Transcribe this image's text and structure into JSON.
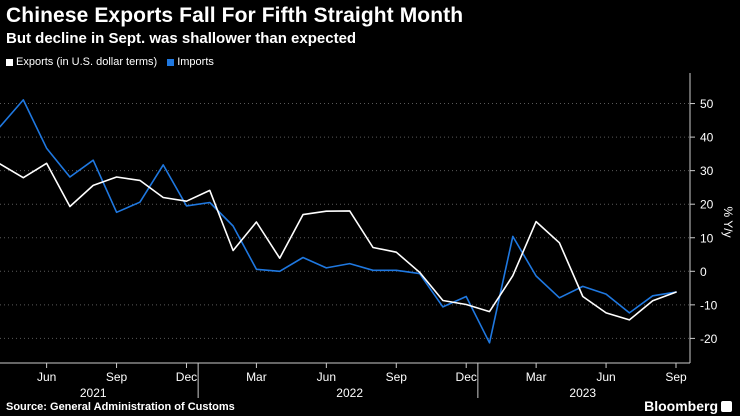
{
  "header": {
    "title": "Chinese Exports Fall For Fifth Straight Month",
    "subtitle": "But decline in Sept. was shallower than expected"
  },
  "footer": {
    "source": "Source: General Administration of Customs",
    "brand": "Bloomberg"
  },
  "colors": {
    "background": "#000000",
    "exports": "#ffffff",
    "imports": "#1f78e0",
    "grid": "#5a5a5a",
    "text": "#ffffff"
  },
  "chart_data": {
    "type": "line",
    "title": "Chinese Exports Fall For Fifth Straight Month",
    "subtitle": "But decline in Sept. was shallower than expected",
    "ylabel": "% Y/y",
    "xlabel": "",
    "ylim": [
      -25,
      60
    ],
    "yticks": [
      50,
      40,
      30,
      20,
      10,
      0,
      -10,
      -20
    ],
    "grid": true,
    "legend_position": "top-left",
    "x": [
      "2021-04",
      "2021-05",
      "2021-06",
      "2021-07",
      "2021-08",
      "2021-09",
      "2021-10",
      "2021-11",
      "2021-12",
      "2022-01",
      "2022-02",
      "2022-03",
      "2022-04",
      "2022-05",
      "2022-06",
      "2022-07",
      "2022-08",
      "2022-09",
      "2022-10",
      "2022-11",
      "2022-12",
      "2023-01",
      "2023-02",
      "2023-03",
      "2023-04",
      "2023-05",
      "2023-06",
      "2023-07",
      "2023-08",
      "2023-09"
    ],
    "x_tick_labels": [
      {
        "label": "Jun",
        "x": "2021-06"
      },
      {
        "label": "Sep",
        "x": "2021-09"
      },
      {
        "label": "Dec",
        "x": "2021-12"
      },
      {
        "label": "Mar",
        "x": "2022-03"
      },
      {
        "label": "Jun",
        "x": "2022-06"
      },
      {
        "label": "Sep",
        "x": "2022-09"
      },
      {
        "label": "Dec",
        "x": "2022-12"
      },
      {
        "label": "Mar",
        "x": "2023-03"
      },
      {
        "label": "Jun",
        "x": "2023-06"
      },
      {
        "label": "Sep",
        "x": "2023-09"
      }
    ],
    "year_labels": [
      {
        "label": "2021",
        "x": "2021-08"
      },
      {
        "label": "2022",
        "x": "2022-07"
      },
      {
        "label": "2023",
        "x": "2023-05"
      }
    ],
    "year_dividers": [
      "2022-01",
      "2023-01"
    ],
    "series": [
      {
        "name": "Exports (in U.S. dollar terms)",
        "color": "#ffffff",
        "values": [
          32,
          27.9,
          32.2,
          19.3,
          25.6,
          28.1,
          27.1,
          22,
          20.9,
          24.1,
          6.2,
          14.7,
          3.9,
          16.9,
          17.9,
          18,
          7.1,
          5.7,
          -0.3,
          -8.7,
          -9.9,
          -12,
          -1.3,
          14.8,
          8.5,
          -7.5,
          -12.4,
          -14.5,
          -8.8,
          -6.2
        ]
      },
      {
        "name": "Imports",
        "color": "#1f78e0",
        "values": [
          43.1,
          51.1,
          36.7,
          28.1,
          33.1,
          17.6,
          20.6,
          31.7,
          19.5,
          20.5,
          13.5,
          0.6,
          0,
          4.1,
          1,
          2.3,
          0.3,
          0.3,
          -0.7,
          -10.6,
          -7.5,
          -21.3,
          10.4,
          -1.4,
          -7.9,
          -4.5,
          -6.8,
          -12.4,
          -7.3,
          -6.2
        ]
      }
    ]
  }
}
